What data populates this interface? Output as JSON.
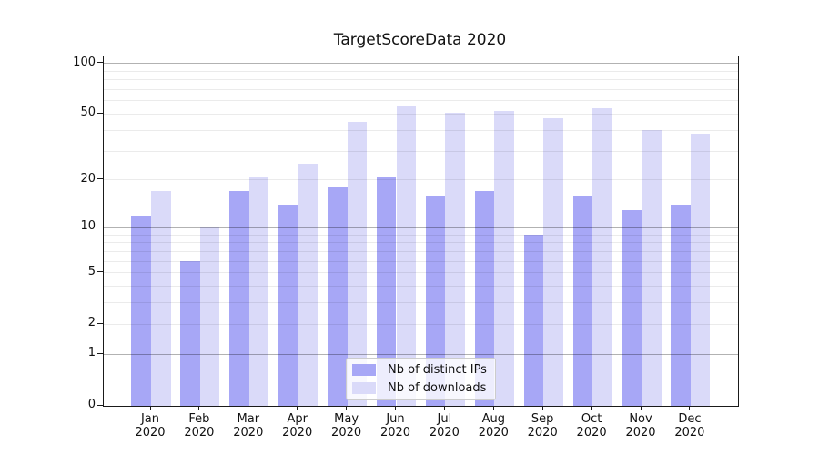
{
  "chart_data": {
    "type": "bar",
    "title": "TargetScoreData 2020",
    "categories": [
      "Jan",
      "Feb",
      "Mar",
      "Apr",
      "May",
      "Jun",
      "Jul",
      "Aug",
      "Sep",
      "Oct",
      "Nov",
      "Dec"
    ],
    "category_year": "2020",
    "series": [
      {
        "name": "Nb of distinct IPs",
        "color": "#a7a7f6",
        "values": [
          12,
          6,
          17,
          14,
          18,
          21,
          16,
          17,
          9,
          16,
          13,
          14
        ]
      },
      {
        "name": "Nb of downloads",
        "color": "#dadaf9",
        "values": [
          17,
          10,
          21,
          25,
          45,
          56,
          51,
          52,
          47,
          54,
          40,
          38
        ]
      }
    ],
    "yscale": "log1p",
    "ylim": [
      0,
      110
    ],
    "yticks": [
      100,
      50,
      20,
      10,
      5,
      2,
      1,
      0
    ],
    "grid": {
      "major": [
        1,
        10,
        100
      ],
      "minor": [
        2,
        3,
        4,
        5,
        6,
        7,
        8,
        9,
        20,
        30,
        40,
        50,
        60,
        70,
        80,
        90
      ]
    },
    "legend_position": "lower center",
    "xlabel": "",
    "ylabel": ""
  },
  "colors": {
    "spine": "#1a1a1a",
    "major_grid": "rgba(0,0,0,0.30)",
    "minor_grid": "rgba(0,0,0,0.08)",
    "text": "#111111",
    "background": "#ffffff"
  }
}
